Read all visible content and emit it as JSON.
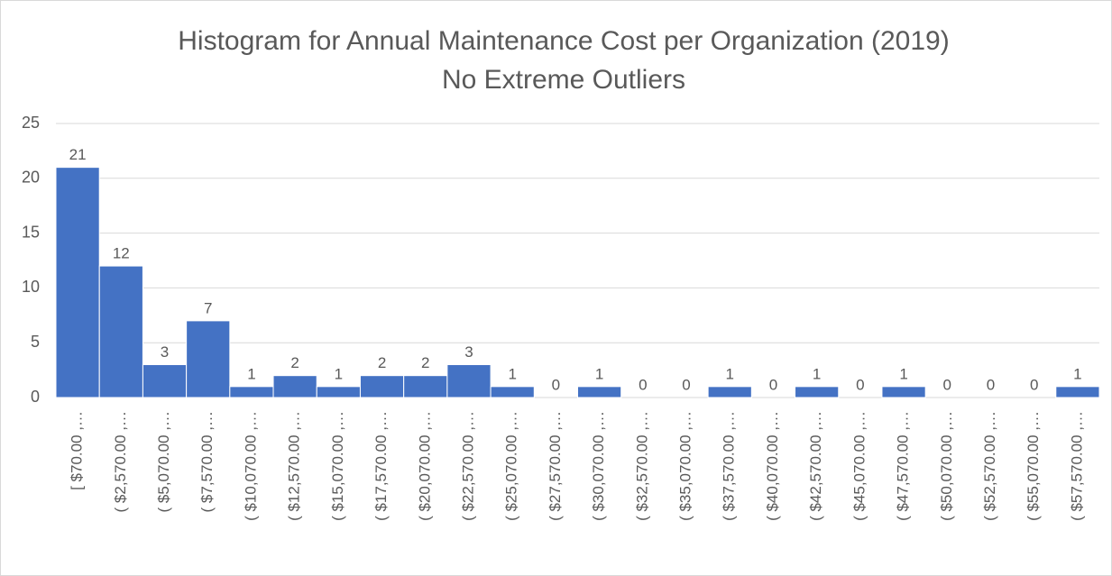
{
  "chart_data": {
    "type": "bar",
    "title": "Histogram for Annual Maintenance Cost per Organization (2019)",
    "subtitle": "No Extreme Outliers",
    "categories": [
      "[ $70.00 ,…",
      "( $2,570.00 ,…",
      "( $5,070.00 ,…",
      "( $7,570.00 ,…",
      "( $10,070.00 ,…",
      "( $12,570.00 ,…",
      "( $15,070.00 ,…",
      "( $17,570.00 ,…",
      "( $20,070.00 ,…",
      "( $22,570.00 ,…",
      "( $25,070.00 ,…",
      "( $27,570.00 ,…",
      "( $30,070.00 ,…",
      "( $32,570.00 ,…",
      "( $35,070.00 ,…",
      "( $37,570.00 ,…",
      "( $40,070.00 ,…",
      "( $42,570.00 ,…",
      "( $45,070.00 ,…",
      "( $47,570.00 ,…",
      "( $50,070.00 ,…",
      "( $52,570.00 ,…",
      "( $55,070.00 ,…",
      "( $57,570.00 ,…"
    ],
    "values": [
      21,
      12,
      3,
      7,
      1,
      2,
      1,
      2,
      2,
      3,
      1,
      0,
      1,
      0,
      0,
      1,
      0,
      1,
      0,
      1,
      0,
      0,
      0,
      1
    ],
    "color": "#4472c4",
    "ylim": [
      0,
      25
    ],
    "yticks": [
      0,
      5,
      10,
      15,
      20,
      25
    ],
    "grid": true
  }
}
